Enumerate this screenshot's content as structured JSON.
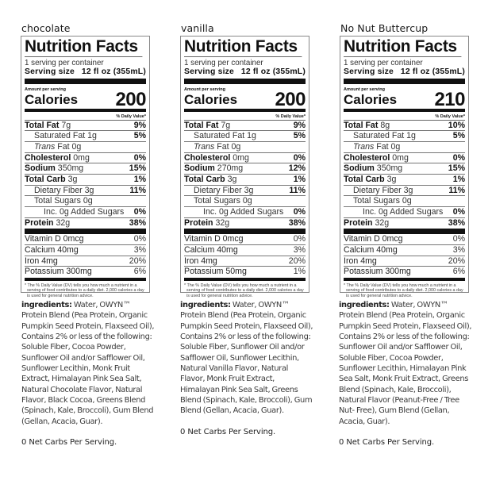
{
  "labels": [
    {
      "flavor": "chocolate",
      "title": "Nutrition Facts",
      "servings_per_container": "1 serving per container",
      "serving_size_label": "Serving size",
      "serving_size_value": "12 fl oz (355mL)",
      "amount_per_serving": "Amount per serving",
      "calories_label": "Calories",
      "calories": "200",
      "daily_value_header": "% Daily Value*",
      "nutrients": {
        "total_fat": {
          "label": "Total Fat",
          "amount": "7g",
          "dv": "9%"
        },
        "saturated_fat": {
          "label": "Saturated Fat 1g",
          "dv": "5%"
        },
        "trans_fat": {
          "label_italic": "Trans",
          "label": "Fat 0g"
        },
        "cholesterol": {
          "label": "Cholesterol",
          "amount": "0mg",
          "dv": "0%"
        },
        "sodium": {
          "label": "Sodium",
          "amount": "350mg",
          "dv": "15%"
        },
        "total_carb": {
          "label": "Total Carb",
          "amount": "3g",
          "dv": "1%"
        },
        "dietary_fiber": {
          "label": "Dietary Fiber 3g",
          "dv": "11%"
        },
        "total_sugars": {
          "label": "Total Sugars 0g"
        },
        "added_sugars": {
          "label": "Inc. 0g Added Sugars",
          "dv": "0%"
        },
        "protein": {
          "label": "Protein",
          "amount": "32g",
          "dv": "38%"
        }
      },
      "vitamins": [
        {
          "label": "Vitamin D 0mcg",
          "dv": "0%"
        },
        {
          "label": "Calcium 40mg",
          "dv": "3%"
        },
        {
          "label": "Iron 4mg",
          "dv": "20%"
        },
        {
          "label": "Potassium 300mg",
          "dv": "6%"
        }
      ],
      "footnote": "* The % Daily Value (DV) tells you how much a nutrient in a serving of food contributes to a daily diet. 2,000 calories a day is used for general nutrition advice.",
      "ingredients_heading": "ingredients:",
      "ingredients": "Water, OWYN™ Protein Blend (Pea Protein, Organic Pumpkin Seed Protein, Flaxseed Oil), Contains 2% or less of the following: Soluble Fiber, Cocoa Powder, Sunflower Oil and/or Safflower Oil, Sunflower Lecithin, Monk Fruit Extract, Himalayan Pink Sea Salt, Natural Chocolate Flavor, Natural Flavor, Black Cocoa, Greens Blend (Spinach, Kale, Broccoli), Gum Blend (Gellan, Acacia, Guar).",
      "net_carbs": "0 Net Carbs Per Serving."
    },
    {
      "flavor": "vanilla",
      "title": "Nutrition Facts",
      "servings_per_container": "1 serving per container",
      "serving_size_label": "Serving size",
      "serving_size_value": "12 fl oz (355mL)",
      "amount_per_serving": "Amount per serving",
      "calories_label": "Calories",
      "calories": "200",
      "daily_value_header": "% Daily Value*",
      "nutrients": {
        "total_fat": {
          "label": "Total Fat",
          "amount": "7g",
          "dv": "9%"
        },
        "saturated_fat": {
          "label": "Saturated Fat 1g",
          "dv": "5%"
        },
        "trans_fat": {
          "label_italic": "Trans",
          "label": "Fat 0g"
        },
        "cholesterol": {
          "label": "Cholesterol",
          "amount": "0mg",
          "dv": "0%"
        },
        "sodium": {
          "label": "Sodium",
          "amount": "270mg",
          "dv": "12%"
        },
        "total_carb": {
          "label": "Total Carb",
          "amount": "3g",
          "dv": "1%"
        },
        "dietary_fiber": {
          "label": "Dietary Fiber 3g",
          "dv": "11%"
        },
        "total_sugars": {
          "label": "Total Sugars 0g"
        },
        "added_sugars": {
          "label": "Inc. 0g Added Sugars",
          "dv": "0%"
        },
        "protein": {
          "label": "Protein",
          "amount": "32g",
          "dv": "38%"
        }
      },
      "vitamins": [
        {
          "label": "Vitamin D 0mcg",
          "dv": "0%"
        },
        {
          "label": "Calcium 40mg",
          "dv": "3%"
        },
        {
          "label": "Iron 4mg",
          "dv": "20%"
        },
        {
          "label": "Potassium 50mg",
          "dv": "1%"
        }
      ],
      "footnote": "* The % Daily Value (DV) tells you how much a nutrient in a serving of food contributes to a daily diet. 2,000 calories a day is used for general nutrition advice.",
      "ingredients_heading": "ingredients:",
      "ingredients": "Water, OWYN™ Protein Blend (Pea Protein, Organic Pumpkin Seed Protein, Flaxseed Oil), Contains 2% or less of the following: Soluble Fiber, Sunflower Oil and/or Safflower Oil, Sunflower Lecithin, Natural Vanilla Flavor, Natural Flavor, Monk Fruit Extract, Himalayan Pink Sea Salt, Greens Blend (Spinach, Kale, Broccoli), Gum Blend (Gellan, Acacia, Guar).",
      "net_carbs": "0 Net Carbs Per Serving."
    },
    {
      "flavor": "No Nut Buttercup",
      "title": "Nutrition Facts",
      "servings_per_container": "1 serving per container",
      "serving_size_label": "Serving size",
      "serving_size_value": "12 fl oz (355mL)",
      "amount_per_serving": "Amount per serving",
      "calories_label": "Calories",
      "calories": "210",
      "daily_value_header": "% Daily Value*",
      "nutrients": {
        "total_fat": {
          "label": "Total Fat",
          "amount": "8g",
          "dv": "10%"
        },
        "saturated_fat": {
          "label": "Saturated Fat 1g",
          "dv": "5%"
        },
        "trans_fat": {
          "label_italic": "Trans",
          "label": "Fat 0g"
        },
        "cholesterol": {
          "label": "Cholesterol",
          "amount": "0mg",
          "dv": "0%"
        },
        "sodium": {
          "label": "Sodium",
          "amount": "350mg",
          "dv": "15%"
        },
        "total_carb": {
          "label": "Total Carb",
          "amount": "3g",
          "dv": "1%"
        },
        "dietary_fiber": {
          "label": "Dietary Fiber 3g",
          "dv": "11%"
        },
        "total_sugars": {
          "label": "Total Sugars 0g"
        },
        "added_sugars": {
          "label": "Inc. 0g Added Sugars",
          "dv": "0%"
        },
        "protein": {
          "label": "Protein",
          "amount": "32g",
          "dv": "38%"
        }
      },
      "vitamins": [
        {
          "label": "Vitamin D 0mcg",
          "dv": "0%"
        },
        {
          "label": "Calcium 40mg",
          "dv": "3%"
        },
        {
          "label": "Iron 4mg",
          "dv": "20%"
        },
        {
          "label": "Potassium 300mg",
          "dv": "6%"
        }
      ],
      "footnote": "* The % Daily Value (DV) tells you how much a nutrient in a serving of food contributes to a daily diet. 2,000 calories a day is used for general nutrition advice.",
      "ingredients_heading": "ingredients:",
      "ingredients": "Water, OWYN™ Protein Blend (Pea Protein, Organic Pumpkin Seed Protein, Flaxseed Oil), Contains 2% or less of the following: Sunflower Oil and/or Safflower Oil, Soluble Fiber, Cocoa Powder, Sunflower Lecithin, Himalayan Pink Sea Salt, Monk Fruit Extract, Greens Blend (Spinach, Kale, Broccoli), Natural Flavor (Peanut-Free / Tree Nut- Free), Gum Blend (Gellan, Acacia, Guar).",
      "net_carbs": "0 Net Carbs Per Serving."
    }
  ]
}
